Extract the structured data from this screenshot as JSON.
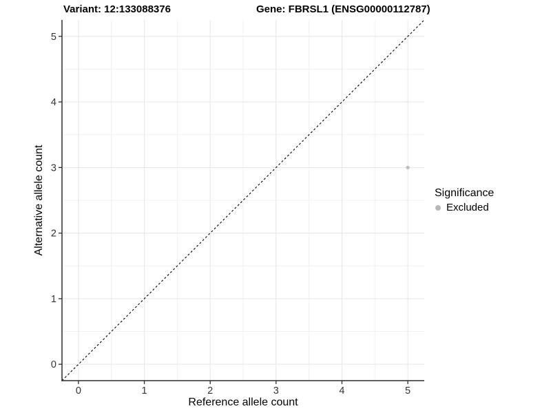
{
  "header": {
    "variant_title": "Variant: 12:133088376",
    "gene_title": "Gene: FBRSL1 (ENSG00000112787)"
  },
  "chart_data": {
    "type": "scatter",
    "title": "Variant: 12:133088376   Gene: FBRSL1 (ENSG00000112787)",
    "xlabel": "Reference allele count",
    "ylabel": "Alternative allele count",
    "xlim": [
      -0.25,
      5.25
    ],
    "ylim": [
      -0.25,
      5.25
    ],
    "x_ticks": [
      0,
      1,
      2,
      3,
      4,
      5
    ],
    "y_ticks": [
      0,
      1,
      2,
      3,
      4,
      5
    ],
    "grid": "major+minor",
    "series": [
      {
        "name": "Excluded",
        "color": "#bebebe",
        "points": [
          {
            "x": 5,
            "y": 3
          }
        ]
      }
    ],
    "reference_line": {
      "type": "identity",
      "equation": "y = x",
      "style": "dashed",
      "color": "#000000"
    },
    "legend": {
      "title": "Significance",
      "position": "right",
      "items": [
        {
          "label": "Excluded",
          "color": "#bebebe"
        }
      ]
    }
  },
  "colors": {
    "background": "#ffffff",
    "axis_line": "#2b2b2b",
    "tick_label": "#333333",
    "grid_major": "#e5e5e5",
    "grid_minor": "#f1f1f1",
    "point": "#bebebe"
  }
}
